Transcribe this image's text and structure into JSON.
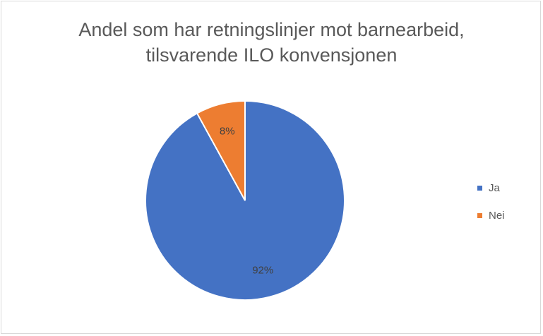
{
  "chart_data": {
    "type": "pie",
    "title_lines": [
      "Andel som har retningslinjer  mot barnearbeid,",
      "tilsvarende  ILO konvensjonen"
    ],
    "categories": [
      "Ja",
      "Nei"
    ],
    "values": [
      92,
      8
    ],
    "data_labels": [
      "92%",
      "8%"
    ],
    "colors": [
      "#4472c4",
      "#ed7d31"
    ],
    "legend_position": "right"
  }
}
